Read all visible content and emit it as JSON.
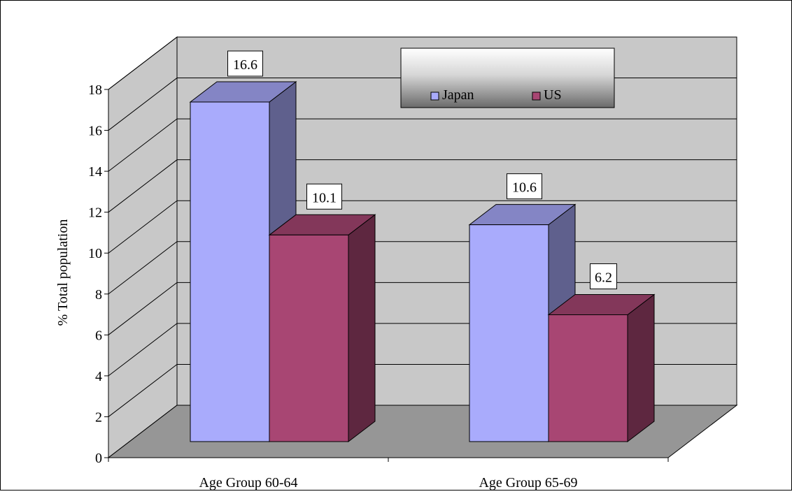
{
  "chart_data": {
    "type": "bar",
    "subtype": "3d-clustered-column",
    "title": "",
    "xlabel": "",
    "ylabel": "% Total population",
    "ylim": [
      0,
      18
    ],
    "yticks": [
      "0",
      "2",
      "4",
      "6",
      "8",
      "10",
      "12",
      "14",
      "16",
      "18"
    ],
    "grid": true,
    "legend_position": "top-right",
    "categories": [
      "Age Group 60-64",
      "Age Group 65-69"
    ],
    "series": [
      {
        "name": "Japan",
        "values": [
          16.6,
          10.6
        ],
        "labels": [
          "16.6",
          "10.6"
        ],
        "color": "#a9abfc"
      },
      {
        "name": "US",
        "values": [
          10.1,
          6.2
        ],
        "labels": [
          "10.1",
          "6.2"
        ],
        "color": "#a84673"
      }
    ],
    "colors": {
      "wall": "#c8c8c8",
      "floor": "#969696",
      "gridline": "#000000"
    }
  }
}
